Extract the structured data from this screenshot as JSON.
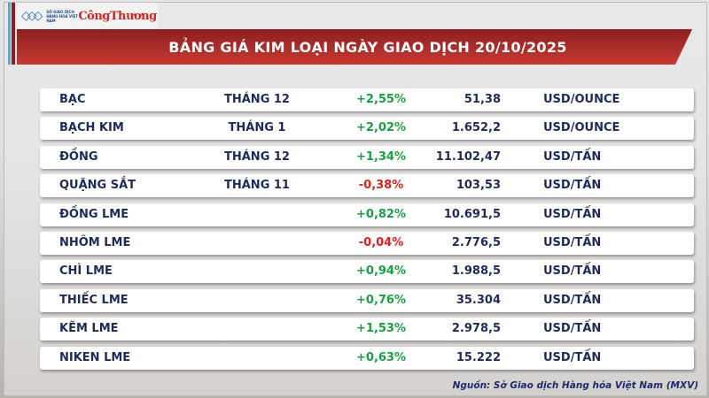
{
  "logo": {
    "exchange_text": "SỞ GIAO DỊCH HÀNG HÓA VIỆT NAM",
    "brand": "CôngThương"
  },
  "title": "BẢNG GIÁ KIM LOẠI NGÀY GIAO DỊCH 20/10/2025",
  "colors": {
    "up": "#19a043",
    "down": "#e0201e",
    "banner": "#b0302b"
  },
  "rows": [
    {
      "name": "BẠC",
      "term": "THÁNG 12",
      "change": "+2,55%",
      "dir": "up",
      "price": "51,38",
      "unit": "USD/OUNCE"
    },
    {
      "name": "BẠCH KIM",
      "term": "THÁNG 1",
      "change": "+2,02%",
      "dir": "up",
      "price": "1.652,2",
      "unit": "USD/OUNCE"
    },
    {
      "name": "ĐỒNG",
      "term": "THÁNG 12",
      "change": "+1,34%",
      "dir": "up",
      "price": "11.102,47",
      "unit": "USD/TẤN"
    },
    {
      "name": "QUẶNG SẮT",
      "term": "THÁNG 11",
      "change": "-0,38%",
      "dir": "down",
      "price": "103,53",
      "unit": "USD/TẤN"
    },
    {
      "name": "ĐỒNG LME",
      "term": "",
      "change": "+0,82%",
      "dir": "up",
      "price": "10.691,5",
      "unit": "USD/TẤN"
    },
    {
      "name": "NHÔM LME",
      "term": "",
      "change": "-0,04%",
      "dir": "down",
      "price": "2.776,5",
      "unit": "USD/TẤN"
    },
    {
      "name": "CHÌ LME",
      "term": "",
      "change": "+0,94%",
      "dir": "up",
      "price": "1.988,5",
      "unit": "USD/TẤN"
    },
    {
      "name": "THIẾC LME",
      "term": "",
      "change": "+0,76%",
      "dir": "up",
      "price": "35.304",
      "unit": "USD/TẤN"
    },
    {
      "name": "KẼM LME",
      "term": "",
      "change": "+1,53%",
      "dir": "up",
      "price": "2.978,5",
      "unit": "USD/TẤN"
    },
    {
      "name": "NIKEN LME",
      "term": "",
      "change": "+0,63%",
      "dir": "up",
      "price": "15.222",
      "unit": "USD/TẤN"
    }
  ],
  "source": "Nguồn: Sở Giao dịch Hàng hóa Việt Nam (MXV)"
}
